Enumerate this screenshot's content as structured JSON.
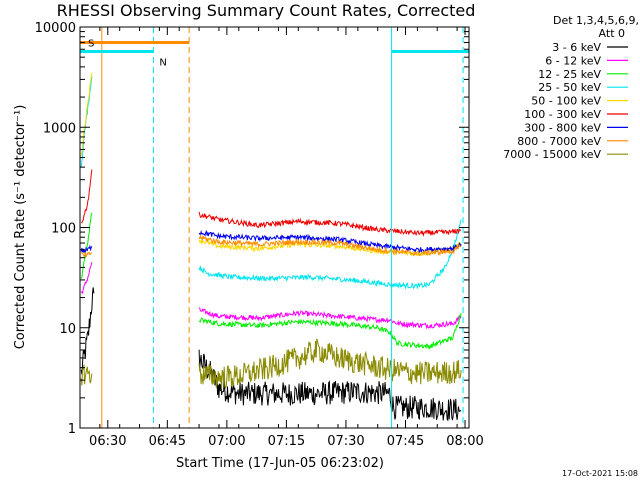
{
  "chart_data": {
    "type": "line",
    "title": "RHESSI Observing Summary Count Rates, Corrected",
    "xlabel": "Start Time (17-Jun-05 06:23:02)",
    "ylabel": "Corrected Count Rate (s⁻¹ detector⁻¹)",
    "yscale": "log",
    "ylim": [
      1,
      10000
    ],
    "xlim": [
      0,
      98
    ],
    "x_units": "minutes after 06:23:02",
    "x_ticks": [
      {
        "label": "06:30",
        "value": 7
      },
      {
        "label": "06:45",
        "value": 22
      },
      {
        "label": "07:00",
        "value": 37
      },
      {
        "label": "07:15",
        "value": 52
      },
      {
        "label": "07:30",
        "value": 67
      },
      {
        "label": "07:45",
        "value": 82
      },
      {
        "label": "08:00",
        "value": 97
      }
    ],
    "y_ticks": [
      {
        "label": "1",
        "value": 1
      },
      {
        "label": "10",
        "value": 10
      },
      {
        "label": "100",
        "value": 100
      },
      {
        "label": "1000",
        "value": 1000
      },
      {
        "label": "10000",
        "value": 10000
      }
    ],
    "legend_header": [
      "Det 1,3,4,5,6,9,",
      "Att 0"
    ],
    "legend_position": "right",
    "timestamp": "17-Oct-2021 15:08",
    "annotations": [
      {
        "label": "S",
        "color": "#ff8c00"
      },
      {
        "label": "N",
        "color": "#00e5ee"
      }
    ],
    "markers": {
      "saa": {
        "color": "#ff8c00",
        "start": 0,
        "end": 27.5,
        "level": 7000,
        "label_x": 2
      },
      "night": [
        {
          "color": "#00e5ee",
          "start": 0,
          "end": 18.5,
          "level": 5700,
          "label_x": 20
        },
        {
          "color": "#00e5ee",
          "start": 78.5,
          "end": 98,
          "level": 5700
        }
      ],
      "vlines": [
        {
          "x": 5.5,
          "color": "#ff8c00",
          "style": "solid"
        },
        {
          "x": 18.5,
          "color": "#00e5ee",
          "style": "dashed"
        },
        {
          "x": 27.5,
          "color": "#ff8c00",
          "style": "dashed"
        },
        {
          "x": 78.5,
          "color": "#00e5ee",
          "style": "solid"
        },
        {
          "x": 96.5,
          "color": "#00e5ee",
          "style": "dashed"
        }
      ]
    },
    "series": [
      {
        "name": "3 - 6 keV",
        "color": "#000000",
        "segments": [
          [
            [
              0.3,
              3.5
            ],
            [
              1,
              5
            ],
            [
              2,
              8
            ],
            [
              2.5,
              12
            ],
            [
              3,
              18
            ],
            [
              3.5,
              22
            ]
          ],
          [
            [
              30,
              5
            ],
            [
              33,
              3.5
            ],
            [
              35,
              2.5
            ],
            [
              40,
              2.2
            ],
            [
              50,
              2.2
            ],
            [
              60,
              2.2
            ],
            [
              70,
              2.3
            ],
            [
              78,
              2.2
            ],
            [
              79,
              1.6
            ],
            [
              88,
              1.6
            ],
            [
              96,
              1.5
            ]
          ]
        ]
      },
      {
        "name": "6 - 12 keV",
        "color": "#ff00ff",
        "segments": [
          [
            [
              0.3,
              22
            ],
            [
              1,
              25
            ],
            [
              2,
              32
            ],
            [
              3,
              45
            ]
          ],
          [
            [
              30,
              15
            ],
            [
              35,
              13
            ],
            [
              45,
              12.5
            ],
            [
              55,
              14
            ],
            [
              65,
              13
            ],
            [
              75,
              12
            ],
            [
              78,
              12
            ],
            [
              80,
              11
            ],
            [
              88,
              10.5
            ],
            [
              94,
              11
            ],
            [
              96,
              13
            ]
          ]
        ]
      },
      {
        "name": "12 - 25 keV",
        "color": "#00ee00",
        "segments": [
          [
            [
              0.3,
              30
            ],
            [
              1,
              45
            ],
            [
              2,
              75
            ],
            [
              3,
              140
            ]
          ],
          [
            [
              30,
              12
            ],
            [
              35,
              11
            ],
            [
              45,
              10.5
            ],
            [
              55,
              11.5
            ],
            [
              65,
              11
            ],
            [
              75,
              10
            ],
            [
              78,
              9
            ],
            [
              80,
              7
            ],
            [
              88,
              6.5
            ],
            [
              94,
              8
            ],
            [
              96,
              14
            ]
          ]
        ]
      },
      {
        "name": "25 - 50 keV",
        "color": "#00e5ee",
        "segments": [
          [
            [
              0.3,
              400
            ],
            [
              1,
              800
            ],
            [
              2,
              1600
            ],
            [
              3,
              3200
            ]
          ],
          [
            [
              30,
              40
            ],
            [
              32,
              35
            ],
            [
              38,
              32
            ],
            [
              48,
              31
            ],
            [
              58,
              32
            ],
            [
              68,
              30
            ],
            [
              78,
              27
            ],
            [
              85,
              26
            ],
            [
              88,
              27
            ],
            [
              92,
              40
            ],
            [
              95,
              80
            ],
            [
              96,
              120
            ]
          ]
        ]
      },
      {
        "name": "50 - 100 keV",
        "color": "#ffd700",
        "segments": [
          [
            [
              0.3,
              500
            ],
            [
              1,
              900
            ],
            [
              2,
              1800
            ],
            [
              3,
              3500
            ]
          ],
          [
            [
              30,
              75
            ],
            [
              35,
              65
            ],
            [
              45,
              62
            ],
            [
              55,
              68
            ],
            [
              65,
              65
            ],
            [
              75,
              58
            ],
            [
              85,
              55
            ],
            [
              94,
              60
            ],
            [
              96,
              70
            ]
          ]
        ]
      },
      {
        "name": "100 - 300 keV",
        "color": "#ee0000",
        "segments": [
          [
            [
              0.3,
              110
            ],
            [
              1,
              130
            ],
            [
              2,
              180
            ],
            [
              3,
              380
            ]
          ],
          [
            [
              30,
              135
            ],
            [
              35,
              120
            ],
            [
              45,
              105
            ],
            [
              55,
              115
            ],
            [
              65,
              110
            ],
            [
              75,
              95
            ],
            [
              85,
              88
            ],
            [
              94,
              90
            ],
            [
              96,
              95
            ]
          ]
        ]
      },
      {
        "name": "300 - 800 keV",
        "color": "#0000ee",
        "segments": [
          [
            [
              0.3,
              60
            ],
            [
              1,
              58
            ],
            [
              2,
              60
            ],
            [
              3,
              65
            ]
          ],
          [
            [
              30,
              90
            ],
            [
              35,
              82
            ],
            [
              45,
              78
            ],
            [
              55,
              80
            ],
            [
              65,
              76
            ],
            [
              75,
              66
            ],
            [
              85,
              60
            ],
            [
              94,
              62
            ],
            [
              96,
              68
            ]
          ]
        ]
      },
      {
        "name": "800 - 7000 keV",
        "color": "#ff8c00",
        "segments": [
          [
            [
              0.3,
              55
            ],
            [
              1,
              52
            ],
            [
              2,
              53
            ],
            [
              3,
              56
            ]
          ],
          [
            [
              30,
              80
            ],
            [
              35,
              72
            ],
            [
              45,
              68
            ],
            [
              55,
              72
            ],
            [
              65,
              70
            ],
            [
              75,
              60
            ],
            [
              85,
              55
            ],
            [
              94,
              58
            ],
            [
              96,
              65
            ]
          ]
        ]
      },
      {
        "name": "7000 - 15000 keV",
        "color": "#8b8b00",
        "segments": [
          [
            [
              0.3,
              3.5
            ],
            [
              1,
              3.5
            ],
            [
              2,
              3.5
            ],
            [
              3,
              3.5
            ]
          ],
          [
            [
              30,
              3.5
            ],
            [
              35,
              3.2
            ],
            [
              40,
              3.3
            ],
            [
              48,
              4
            ],
            [
              55,
              5
            ],
            [
              60,
              6
            ],
            [
              65,
              5
            ],
            [
              70,
              4.5
            ],
            [
              78,
              3.8
            ],
            [
              85,
              3.5
            ],
            [
              94,
              3.6
            ],
            [
              96,
              3.8
            ]
          ]
        ]
      }
    ]
  }
}
